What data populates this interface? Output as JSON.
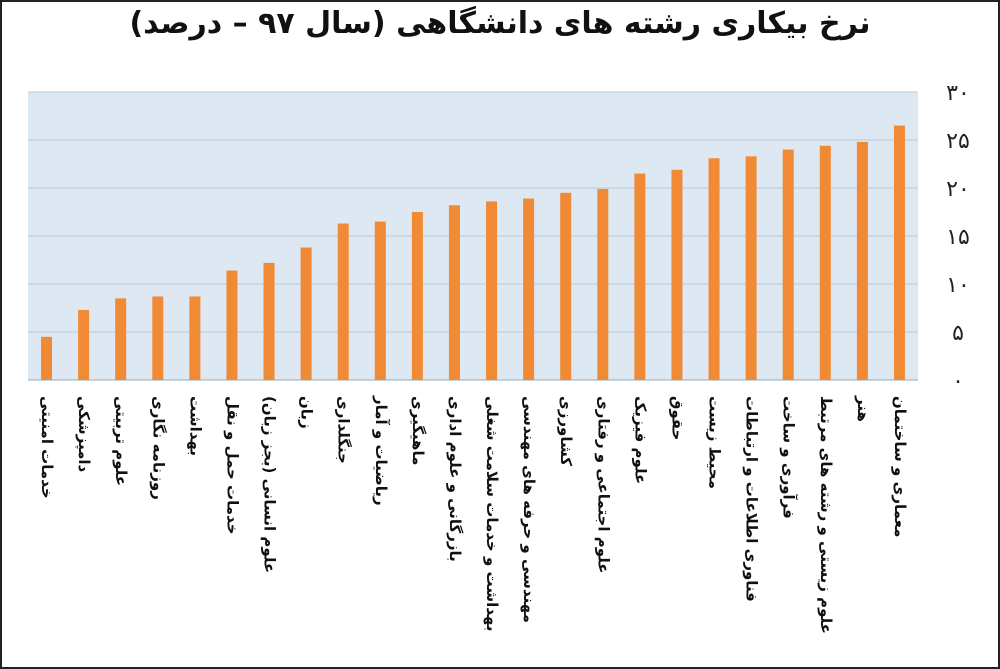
{
  "chart_data": {
    "type": "bar",
    "title": "نرخ بیکاری رشته های دانشگاهی (سال ۹۷ – درصد)",
    "xlabel": "",
    "ylabel": "",
    "ylim": [
      0,
      30
    ],
    "y_ticks": [
      0,
      5,
      10,
      15,
      20,
      25,
      30
    ],
    "y_tick_labels": [
      "۰",
      "۵",
      "۱۰",
      "۱۵",
      "۲۰",
      "۲۵",
      "۳۰"
    ],
    "y_axis_side": "right",
    "grid": true,
    "legend": "none",
    "categories": [
      "خدمات امنیتی",
      "دامپزشکی",
      "علوم تربیتی",
      "روزنامه نگاری",
      "بهداشت",
      "خدمات حمل و نقل",
      "علوم انسانی (بجز زبان)",
      "زبان",
      "جنگلداری",
      "ریاضیات و آمار",
      "ماهیگیری",
      "بازرگانی و علوم اداری",
      "بهداشت و خدمات سلامت شغلی",
      "مهندسی و حرفه های مهندسی",
      "کشاورزی",
      "علوم اجتماعی و رفتاری",
      "علوم فیزیک",
      "حقوق",
      "محیط زیست",
      "فناوری اطلاعات و ارتباطات",
      "فرآوری و ساخت",
      "علوم زیستی و رشته های مرتبط",
      "هنر",
      "معماری و ساختمان"
    ],
    "values": [
      4.5,
      7.3,
      8.5,
      8.7,
      8.7,
      11.4,
      12.2,
      13.8,
      16.3,
      16.5,
      17.5,
      18.2,
      18.6,
      18.9,
      19.5,
      19.9,
      21.5,
      21.9,
      23.1,
      23.3,
      24.0,
      24.4,
      24.8,
      26.5
    ],
    "colors": {
      "bar": "#f08a35",
      "plot_background": "#dde8f3",
      "gridline": "#b9c8d9"
    }
  }
}
